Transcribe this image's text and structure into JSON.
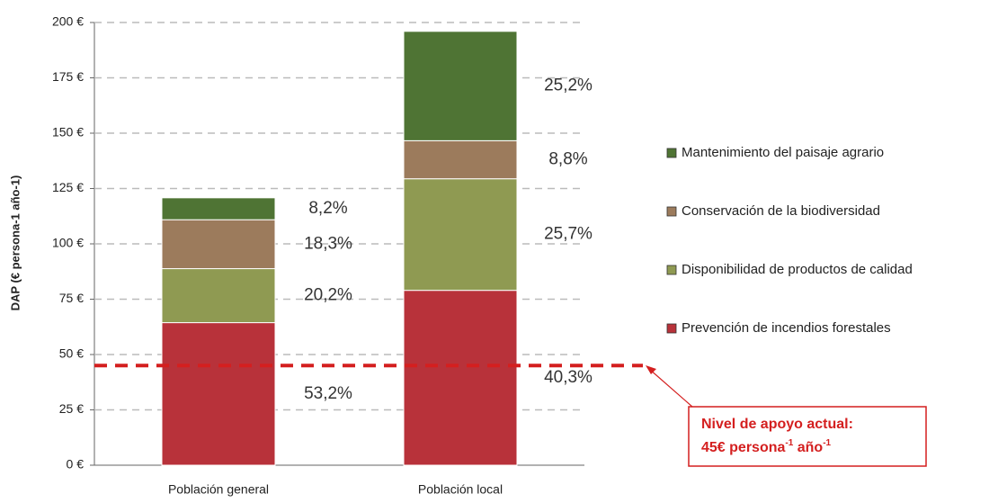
{
  "chart_data": {
    "type": "stacked_bar",
    "y_label": "DAP (€ persona-1 año-1)",
    "categories": [
      "Población general",
      "Población local"
    ],
    "series": [
      {
        "name": "Prevención de incendios forestales",
        "color": "#b8323a",
        "values": [
          64.4,
          79
        ],
        "share_labels": [
          "53,2%",
          "40,3%"
        ]
      },
      {
        "name": "Disponibilidad de productos de calidad",
        "color": "#8f9a52",
        "values": [
          24.4,
          50.4
        ],
        "share_labels": [
          "20,2%",
          "25,7%"
        ]
      },
      {
        "name": "Conservación de la biodiversidad",
        "color": "#9c7b5c",
        "values": [
          22.1,
          17.2
        ],
        "share_labels": [
          "18,3%",
          "8,8%"
        ]
      },
      {
        "name": "Mantenimiento del paisaje agrario",
        "color": "#4f7434",
        "values": [
          9.9,
          49.4
        ],
        "share_labels": [
          "8,2%",
          "25,2%"
        ]
      }
    ],
    "ylim": [
      0,
      200
    ],
    "yticks": [
      {
        "value": 0,
        "label": "0 €"
      },
      {
        "value": 25,
        "label": "25 €"
      },
      {
        "value": 50,
        "label": "50 €"
      },
      {
        "value": 75,
        "label": "75 €"
      },
      {
        "value": 100,
        "label": "100 €"
      },
      {
        "value": 125,
        "label": "125 €"
      },
      {
        "value": 150,
        "label": "150 €"
      },
      {
        "value": 175,
        "label": "175 €"
      },
      {
        "value": 200,
        "label": "200 €"
      }
    ],
    "grid": true,
    "legend": "right",
    "reference_line": {
      "value": 45,
      "color": "#d41f1f",
      "annotation": {
        "line1": "Nivel de apoyo actual:",
        "line2": [
          "45€ persona",
          "-1",
          " año",
          "-1"
        ]
      }
    }
  }
}
